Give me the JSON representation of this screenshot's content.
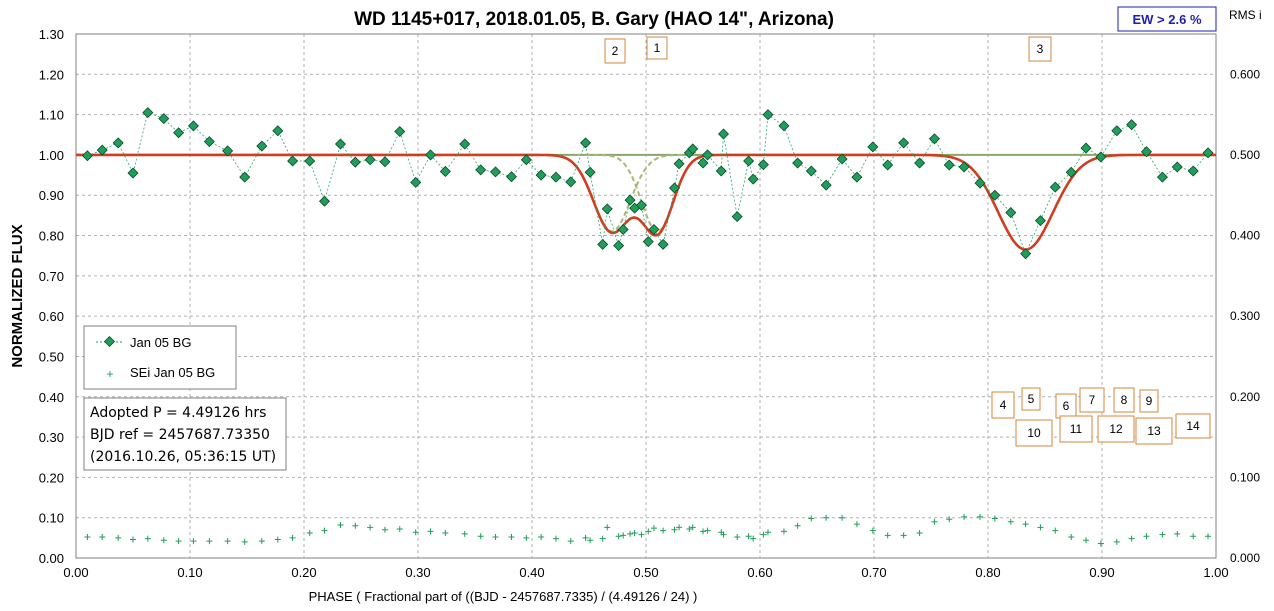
{
  "chart_data": {
    "type": "scatter",
    "title": "WD 1145+017, 2018.01.05, B. Gary (HAO 14\", Arizona)",
    "xlabel": "PHASE ( Fractional part of ((BJD - 2457687.7335) / (4.49126 / 24) )",
    "ylabel": "NORMALIZED FLUX",
    "y2label": "RMS i",
    "xlim": [
      0,
      1
    ],
    "ylim": [
      0,
      1.3
    ],
    "y2lim": [
      0,
      0.65
    ],
    "x_ticks": [
      "0.00",
      "0.10",
      "0.20",
      "0.30",
      "0.40",
      "0.50",
      "0.60",
      "0.70",
      "0.80",
      "0.90",
      "1.00"
    ],
    "y_ticks": [
      "0.00",
      "0.10",
      "0.20",
      "0.30",
      "0.40",
      "0.50",
      "0.60",
      "0.70",
      "0.80",
      "0.90",
      "1.00",
      "1.10",
      "1.20",
      "1.30"
    ],
    "y2_ticks": [
      "0.000",
      "0.100",
      "0.200",
      "0.300",
      "0.400",
      "0.500",
      "0.600"
    ],
    "grid": true,
    "legend_position": "bottom-left",
    "ew_label": "EW >  2.6 %",
    "info_lines": [
      "Adopted P = 4.49126 hrs",
      "BJD ref = 2457687.73350",
      "(2016.10.26, 05:36:15 UT)"
    ],
    "series": [
      {
        "name": "Jan 05 BG",
        "color": "#1e9e5a",
        "marker": "diamond",
        "x": [
          0.01,
          0.023,
          0.037,
          0.05,
          0.063,
          0.077,
          0.09,
          0.103,
          0.117,
          0.133,
          0.148,
          0.163,
          0.177,
          0.19,
          0.205,
          0.218,
          0.232,
          0.245,
          0.258,
          0.271,
          0.284,
          0.298,
          0.311,
          0.324,
          0.341,
          0.355,
          0.368,
          0.382,
          0.395,
          0.408,
          0.421,
          0.434,
          0.447,
          0.451,
          0.462,
          0.466,
          0.476,
          0.48,
          0.486,
          0.49,
          0.496,
          0.502,
          0.507,
          0.515,
          0.525,
          0.529,
          0.538,
          0.541,
          0.55,
          0.554,
          0.566,
          0.568,
          0.58,
          0.59,
          0.594,
          0.603,
          0.607,
          0.621,
          0.633,
          0.645,
          0.658,
          0.672,
          0.685,
          0.699,
          0.712,
          0.726,
          0.74,
          0.753,
          0.766,
          0.779,
          0.793,
          0.806,
          0.82,
          0.833,
          0.846,
          0.859,
          0.873,
          0.886,
          0.899,
          0.913,
          0.926,
          0.939,
          0.953,
          0.966,
          0.98,
          0.993
        ],
        "y": [
          0.998,
          1.012,
          1.03,
          0.955,
          1.105,
          1.09,
          1.055,
          1.072,
          1.033,
          1.01,
          0.945,
          1.022,
          1.06,
          0.985,
          0.985,
          0.885,
          1.027,
          0.982,
          0.988,
          0.983,
          1.058,
          0.932,
          1.0,
          0.959,
          1.027,
          0.963,
          0.958,
          0.946,
          0.988,
          0.95,
          0.945,
          0.933,
          1.03,
          0.957,
          0.778,
          0.866,
          0.775,
          0.815,
          0.888,
          0.868,
          0.875,
          0.785,
          0.815,
          0.778,
          0.918,
          0.978,
          1.005,
          1.015,
          0.98,
          1.0,
          0.96,
          1.052,
          0.847,
          0.985,
          0.94,
          0.976,
          1.1,
          1.072,
          0.98,
          0.96,
          0.925,
          0.99,
          0.945,
          1.02,
          0.975,
          1.03,
          0.98,
          1.04,
          0.975,
          0.97,
          0.93,
          0.9,
          0.857,
          0.755,
          0.837,
          0.92,
          0.957,
          1.017,
          0.995,
          1.06,
          1.075,
          1.008,
          0.945,
          0.97,
          0.96,
          1.005
        ]
      },
      {
        "name": "SEi Jan 05 BG",
        "color": "#1e9e5a",
        "marker": "plus",
        "axis": "right",
        "x": [
          0.01,
          0.023,
          0.037,
          0.05,
          0.063,
          0.077,
          0.09,
          0.103,
          0.117,
          0.133,
          0.148,
          0.163,
          0.177,
          0.19,
          0.205,
          0.218,
          0.232,
          0.245,
          0.258,
          0.271,
          0.284,
          0.298,
          0.311,
          0.324,
          0.341,
          0.355,
          0.368,
          0.382,
          0.395,
          0.408,
          0.421,
          0.434,
          0.447,
          0.451,
          0.462,
          0.466,
          0.476,
          0.48,
          0.486,
          0.49,
          0.496,
          0.502,
          0.507,
          0.515,
          0.525,
          0.529,
          0.538,
          0.541,
          0.55,
          0.554,
          0.566,
          0.568,
          0.58,
          0.59,
          0.594,
          0.603,
          0.607,
          0.621,
          0.633,
          0.645,
          0.658,
          0.672,
          0.685,
          0.699,
          0.712,
          0.726,
          0.74,
          0.753,
          0.766,
          0.779,
          0.793,
          0.806,
          0.82,
          0.833,
          0.846,
          0.859,
          0.873,
          0.886,
          0.899,
          0.913,
          0.926,
          0.939,
          0.953,
          0.966,
          0.98,
          0.993
        ],
        "y": [
          0.026,
          0.026,
          0.025,
          0.023,
          0.024,
          0.022,
          0.021,
          0.021,
          0.021,
          0.021,
          0.02,
          0.021,
          0.023,
          0.025,
          0.031,
          0.034,
          0.041,
          0.04,
          0.038,
          0.035,
          0.036,
          0.032,
          0.033,
          0.031,
          0.03,
          0.027,
          0.026,
          0.026,
          0.025,
          0.026,
          0.024,
          0.021,
          0.025,
          0.022,
          0.024,
          0.038,
          0.027,
          0.028,
          0.03,
          0.031,
          0.029,
          0.033,
          0.037,
          0.034,
          0.035,
          0.038,
          0.036,
          0.038,
          0.033,
          0.034,
          0.032,
          0.029,
          0.026,
          0.027,
          0.024,
          0.029,
          0.032,
          0.033,
          0.04,
          0.049,
          0.05,
          0.05,
          0.042,
          0.034,
          0.028,
          0.028,
          0.031,
          0.045,
          0.048,
          0.051,
          0.051,
          0.049,
          0.045,
          0.042,
          0.038,
          0.034,
          0.026,
          0.022,
          0.018,
          0.02,
          0.024,
          0.027,
          0.029,
          0.03,
          0.027,
          0.027
        ]
      },
      {
        "color": "#cf3f1f",
        "type": "model-line",
        "dips": [
          {
            "center": 0.47,
            "depth": 0.19,
            "width": 0.016
          },
          {
            "center": 0.51,
            "depth": 0.19,
            "width": 0.014
          },
          {
            "center": 0.833,
            "depth": 0.235,
            "width": 0.024
          }
        ]
      },
      {
        "color": "#a8b87a",
        "type": "component-dashed",
        "dips": [
          {
            "center": 0.47,
            "depth": 0.19,
            "width": 0.016
          },
          {
            "center": 0.51,
            "depth": 0.19,
            "width": 0.014
          }
        ]
      },
      {
        "color": "#8aa66a",
        "type": "baseline",
        "y": 1.0
      }
    ],
    "dip_labels": [
      "2",
      "1",
      "3",
      "4",
      "5",
      "6",
      "7",
      "8",
      "9",
      "10",
      "11",
      "12",
      "13",
      "14"
    ]
  }
}
